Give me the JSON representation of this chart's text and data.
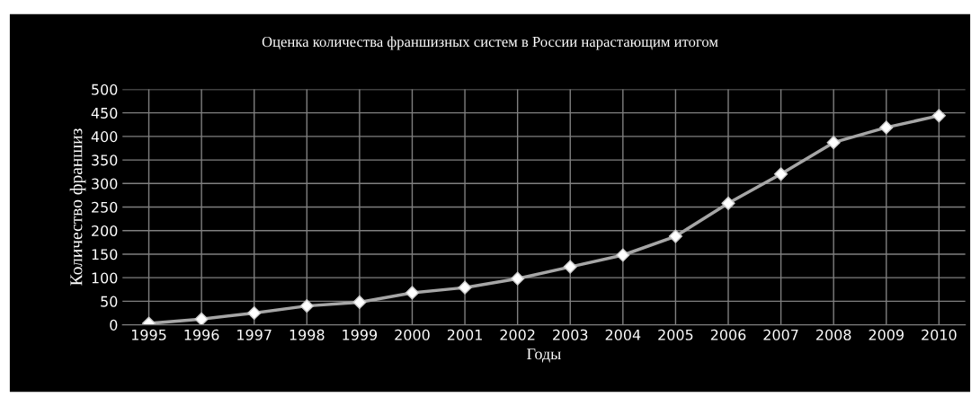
{
  "chart_data": {
    "type": "line",
    "title": "Оценка количества франшизных систем в России нарастающим итогом",
    "xlabel": "Годы",
    "ylabel": "Количество франшиз",
    "categories": [
      "1995",
      "1996",
      "1997",
      "1998",
      "1999",
      "2000",
      "2001",
      "2002",
      "2003",
      "2004",
      "2005",
      "2006",
      "2007",
      "2008",
      "2009",
      "2010"
    ],
    "series": [
      {
        "color": "#a6a6a6",
        "values": [
          3,
          12,
          25,
          40,
          48,
          68,
          79,
          98,
          123,
          148,
          188,
          258,
          320,
          387,
          419,
          444
        ]
      }
    ],
    "ylim": [
      0,
      500
    ],
    "yticks": [
      0,
      50,
      100,
      150,
      200,
      250,
      300,
      350,
      400,
      450,
      500
    ],
    "grid": true,
    "marker": "diamond",
    "line_style": "solid",
    "legend": false
  }
}
